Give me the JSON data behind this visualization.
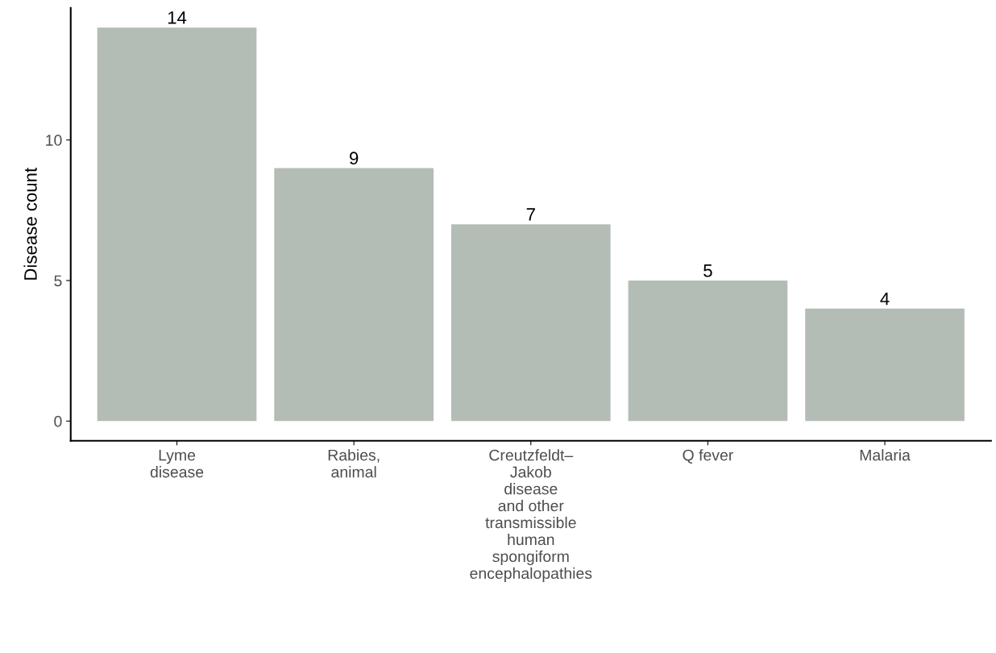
{
  "chart_data": {
    "type": "bar",
    "categories": [
      "Lyme\ndisease",
      "Rabies,\nanimal",
      "Creutzfeldt–\nJakob\ndisease\nand other\ntransmissible\nhuman\nspongiform\nencephalopathies",
      "Q fever",
      "Malaria"
    ],
    "values": [
      14,
      9,
      7,
      5,
      4
    ],
    "color": "#b4bdb5",
    "ylabel": "Disease count",
    "ylim": [
      -0.7,
      14.7
    ],
    "yticks": [
      0,
      5,
      10
    ],
    "data_labels": true,
    "grid": false
  }
}
